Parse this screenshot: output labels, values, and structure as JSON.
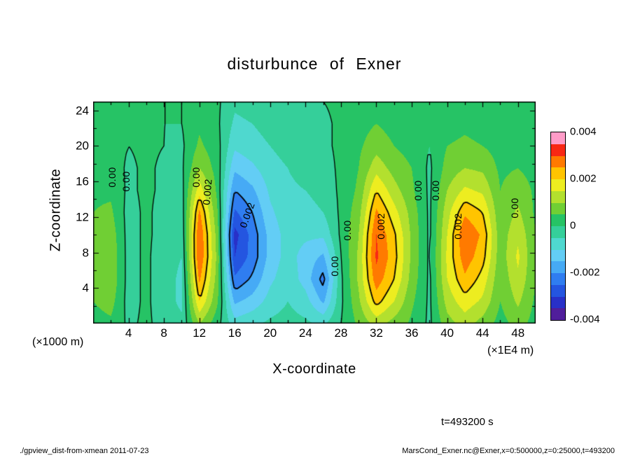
{
  "title": "disturbunce of Exner",
  "axes": {
    "x_label": "X-coordinate",
    "y_label": "Z-coordinate",
    "x_unit": "(×1E4 m)",
    "y_unit": "(×1000 m)"
  },
  "annotations": {
    "time_label": "t=493200 s"
  },
  "footer": {
    "left": "./gpview_dist-from-xmean  2011-07-23",
    "right": "MarsCond_Exner.nc@Exner,x=0:500000,z=0:25000,t=493200"
  },
  "chart_data": {
    "type": "heatmap",
    "variant": "filled_contour",
    "title": "disturbunce of Exner",
    "xlabel": "X-coordinate",
    "ylabel": "Z-coordinate",
    "x_units": "×1E4 m",
    "z_units": "×1000 m",
    "xlim": [
      0,
      50
    ],
    "zlim": [
      0,
      25
    ],
    "x_tick_values": [
      4,
      8,
      12,
      16,
      20,
      24,
      28,
      32,
      36,
      40,
      44,
      48
    ],
    "z_tick_values": [
      4,
      8,
      12,
      16,
      20,
      24
    ],
    "value_scale": 0.0001,
    "fill_levels": {
      "min": -0.004,
      "max": 0.004,
      "step": 0.0005
    },
    "palette": [
      "#501e9b",
      "#2830c8",
      "#2455e0",
      "#2f7df0",
      "#46aaf5",
      "#63cdf5",
      "#4fd8cf",
      "#35cf9a",
      "#26c365",
      "#70cf34",
      "#b3e02e",
      "#eded20",
      "#ffc400",
      "#ff7a00",
      "#f82814",
      "#ff9cc8"
    ],
    "colorbar_labels": [
      "0.004",
      "0.002",
      "0",
      "-0.002",
      "-0.004"
    ],
    "contour_levels": [
      {
        "value": -0.002,
        "style": "dashed"
      },
      {
        "value": 0,
        "style": "solid"
      },
      {
        "value": 0.002,
        "style": "solid"
      }
    ],
    "grid_x": [
      0,
      2,
      4,
      6,
      8,
      10,
      12,
      14,
      16,
      18,
      20,
      22,
      24,
      26,
      28,
      30,
      32,
      34,
      36,
      38,
      40,
      42,
      44,
      46,
      48,
      50
    ],
    "grid_z": [
      0,
      2.5,
      5,
      7.5,
      10,
      12.5,
      15,
      17.5,
      20,
      22.5,
      25
    ],
    "values_order": "columns[x][z], z from bottom (0) to top (25), units of value_scale",
    "values_e4": [
      [
        3,
        5,
        7,
        7,
        6,
        5,
        4,
        3,
        3,
        2,
        2
      ],
      [
        4,
        7,
        9,
        9,
        8,
        6,
        4,
        3,
        2,
        2,
        2
      ],
      [
        -1,
        -2,
        -2,
        -2,
        -2,
        -2,
        -1,
        -1,
        0,
        1,
        1
      ],
      [
        1,
        1,
        1,
        1,
        1,
        1,
        1,
        1,
        1,
        1,
        1
      ],
      [
        -2,
        -3,
        -3,
        -3,
        -2,
        -2,
        -1,
        -1,
        0,
        0,
        0
      ],
      [
        -4,
        -6,
        -6,
        -5,
        -4,
        -3,
        -2,
        -1,
        -1,
        0,
        0
      ],
      [
        10,
        20,
        26,
        30,
        30,
        26,
        18,
        10,
        6,
        4,
        3
      ],
      [
        2,
        6,
        8,
        9,
        8,
        6,
        4,
        3,
        2,
        1,
        1
      ],
      [
        -8,
        -16,
        -24,
        -30,
        -32,
        -26,
        -20,
        -14,
        -9,
        -6,
        -4
      ],
      [
        -6,
        -13,
        -19,
        -23,
        -23,
        -20,
        -16,
        -11,
        -7,
        -5,
        -3
      ],
      [
        -4,
        -8,
        -11,
        -13,
        -13,
        -11,
        -9,
        -7,
        -5,
        -3,
        -2
      ],
      [
        -3,
        -5,
        -7,
        -8,
        -8,
        -7,
        -6,
        -5,
        -3,
        -2,
        -1
      ],
      [
        -4,
        -8,
        -12,
        -12,
        -9,
        -7,
        -5,
        -3,
        -2,
        -1,
        -1
      ],
      [
        -6,
        -16,
        -22,
        -16,
        -9,
        -5,
        -3,
        -2,
        -1,
        -1,
        0
      ],
      [
        0,
        -1,
        -1,
        0,
        1,
        1,
        1,
        1,
        1,
        1,
        1
      ],
      [
        6,
        9,
        11,
        11,
        10,
        8,
        6,
        5,
        4,
        3,
        2
      ],
      [
        12,
        22,
        28,
        31,
        30,
        26,
        20,
        13,
        8,
        5,
        3
      ],
      [
        8,
        15,
        20,
        22,
        21,
        17,
        12,
        8,
        5,
        3,
        2
      ],
      [
        4,
        6,
        8,
        9,
        9,
        8,
        6,
        5,
        3,
        2,
        2
      ],
      [
        -1,
        -1,
        -1,
        -1,
        -1,
        -1,
        -1,
        -1,
        0,
        0,
        0
      ],
      [
        8,
        12,
        15,
        16,
        15,
        13,
        10,
        7,
        5,
        3,
        2
      ],
      [
        12,
        18,
        24,
        28,
        30,
        24,
        16,
        10,
        6,
        4,
        3
      ],
      [
        8,
        14,
        18,
        22,
        24,
        20,
        14,
        9,
        5,
        3,
        2
      ],
      [
        3,
        5,
        6,
        7,
        7,
        6,
        5,
        4,
        3,
        2,
        2
      ],
      [
        7,
        11,
        14,
        16,
        14,
        11,
        8,
        5,
        3,
        2,
        2
      ],
      [
        3,
        4,
        5,
        5,
        5,
        4,
        4,
        3,
        2,
        2,
        1
      ]
    ],
    "contour_labels": [
      {
        "text": "0.00",
        "x": 2.1,
        "z": 16.5,
        "angle": -90
      },
      {
        "text": "0.00",
        "x": 3.7,
        "z": 16.0,
        "angle": -90
      },
      {
        "text": "0.00",
        "x": 11.6,
        "z": 16.5,
        "angle": -90
      },
      {
        "text": "0.002",
        "x": 12.9,
        "z": 14.8,
        "angle": -85
      },
      {
        "text": "0.002",
        "x": 17.4,
        "z": 12.2,
        "angle": -70
      },
      {
        "text": "0.00",
        "x": 27.3,
        "z": 6.5,
        "angle": -90
      },
      {
        "text": "0.00",
        "x": 28.7,
        "z": 10.5,
        "angle": -90
      },
      {
        "text": "0.002",
        "x": 32.5,
        "z": 11.0,
        "angle": -90
      },
      {
        "text": "0.00",
        "x": 36.7,
        "z": 15.0,
        "angle": -90
      },
      {
        "text": "0.00",
        "x": 38.7,
        "z": 15.0,
        "angle": -90
      },
      {
        "text": "0.002",
        "x": 41.2,
        "z": 11.0,
        "angle": -90
      },
      {
        "text": "0.00",
        "x": 47.6,
        "z": 13.0,
        "angle": -90
      }
    ]
  }
}
